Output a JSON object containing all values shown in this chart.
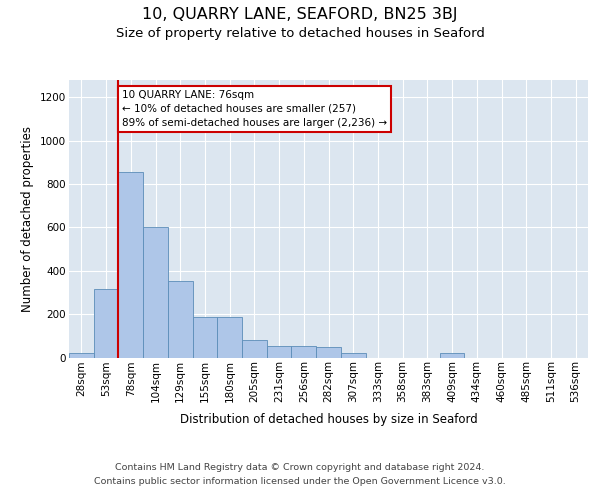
{
  "title": "10, QUARRY LANE, SEAFORD, BN25 3BJ",
  "subtitle": "Size of property relative to detached houses in Seaford",
  "xlabel": "Distribution of detached houses by size in Seaford",
  "ylabel": "Number of detached properties",
  "footer_line1": "Contains HM Land Registry data © Crown copyright and database right 2024.",
  "footer_line2": "Contains public sector information licensed under the Open Government Licence v3.0.",
  "bins": [
    "28sqm",
    "53sqm",
    "78sqm",
    "104sqm",
    "129sqm",
    "155sqm",
    "180sqm",
    "205sqm",
    "231sqm",
    "256sqm",
    "282sqm",
    "307sqm",
    "333sqm",
    "358sqm",
    "383sqm",
    "409sqm",
    "434sqm",
    "460sqm",
    "485sqm",
    "511sqm",
    "536sqm"
  ],
  "values": [
    20,
    315,
    855,
    600,
    355,
    185,
    185,
    80,
    55,
    55,
    50,
    20,
    0,
    0,
    0,
    20,
    0,
    0,
    0,
    0,
    0
  ],
  "bar_color": "#aec6e8",
  "bar_edge_color": "#5b8db8",
  "vline_color": "#cc0000",
  "vline_x": 1.5,
  "annotation_text": "10 QUARRY LANE: 76sqm\n← 10% of detached houses are smaller (257)\n89% of semi-detached houses are larger (2,236) →",
  "annotation_box_facecolor": "#ffffff",
  "annotation_box_edgecolor": "#cc0000",
  "ylim": [
    0,
    1280
  ],
  "yticks": [
    0,
    200,
    400,
    600,
    800,
    1000,
    1200
  ],
  "grid_color": "#ffffff",
  "bg_color": "#dce6f0",
  "title_fontsize": 11.5,
  "subtitle_fontsize": 9.5,
  "ylabel_fontsize": 8.5,
  "xlabel_fontsize": 8.5,
  "tick_fontsize": 7.5,
  "annotation_fontsize": 7.5,
  "footer_fontsize": 6.8
}
